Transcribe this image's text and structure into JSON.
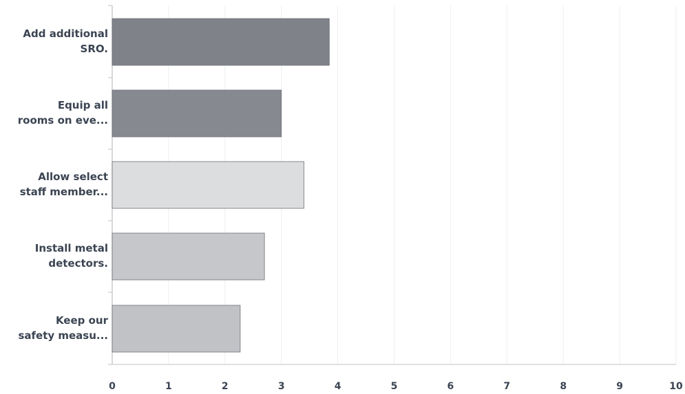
{
  "chart_data": {
    "type": "bar",
    "orientation": "horizontal",
    "categories": [
      [
        "Add additional",
        "SRO."
      ],
      [
        "Equip all",
        "rooms on eve..."
      ],
      [
        "Allow select",
        "staff member..."
      ],
      [
        "Install metal",
        "detectors."
      ],
      [
        "Keep our",
        "safety measu..."
      ]
    ],
    "values": [
      3.85,
      3.0,
      3.4,
      2.7,
      2.27
    ],
    "bar_colors": [
      "#7f8389",
      "#86898f",
      "#dcdddf",
      "#c5c7cb",
      "#c0c2c6"
    ],
    "xlim": [
      0,
      10
    ],
    "x_ticks": [
      "0",
      "1",
      "2",
      "3",
      "4",
      "5",
      "6",
      "7",
      "8",
      "9",
      "10"
    ],
    "grid": true,
    "title": "",
    "xlabel": "",
    "ylabel": ""
  }
}
